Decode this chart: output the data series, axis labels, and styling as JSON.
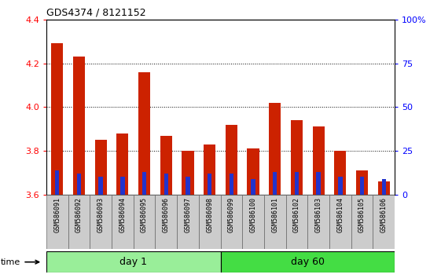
{
  "title": "GDS4374 / 8121152",
  "samples": [
    "GSM586091",
    "GSM586092",
    "GSM586093",
    "GSM586094",
    "GSM586095",
    "GSM586096",
    "GSM586097",
    "GSM586098",
    "GSM586099",
    "GSM586100",
    "GSM586101",
    "GSM586102",
    "GSM586103",
    "GSM586104",
    "GSM586105",
    "GSM586106"
  ],
  "red_values": [
    4.29,
    4.23,
    3.85,
    3.88,
    4.16,
    3.87,
    3.8,
    3.83,
    3.92,
    3.81,
    4.02,
    3.94,
    3.91,
    3.8,
    3.71,
    3.66
  ],
  "blue_percentile": [
    14,
    12,
    10,
    10,
    13,
    12,
    10,
    12,
    12,
    9,
    13,
    13,
    13,
    10,
    10,
    9
  ],
  "ylim": [
    3.6,
    4.4
  ],
  "yticks": [
    3.6,
    3.8,
    4.0,
    4.2,
    4.4
  ],
  "y2ticks": [
    0,
    25,
    50,
    75,
    100
  ],
  "y2lim": [
    0,
    100
  ],
  "bar_color": "#cc2200",
  "blue_color": "#2233cc",
  "day1_color": "#99ee99",
  "day60_color": "#44dd44",
  "bg_color": "#cccccc",
  "day1_count": 8,
  "day60_count": 8
}
